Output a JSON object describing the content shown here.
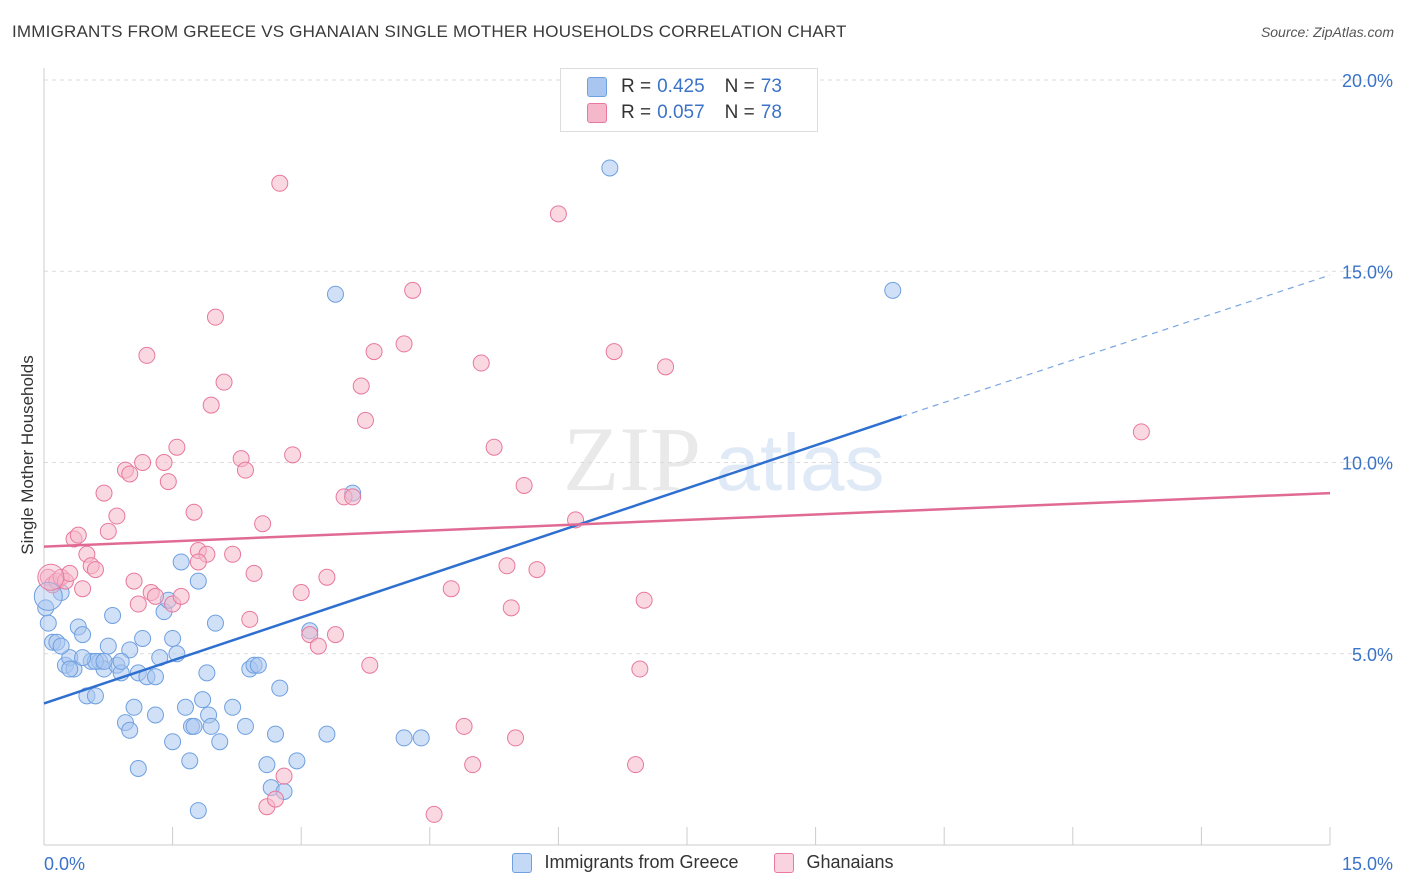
{
  "header": {
    "title": "IMMIGRANTS FROM GREECE VS GHANAIAN SINGLE MOTHER HOUSEHOLDS CORRELATION CHART",
    "source": "Source: ZipAtlas.com"
  },
  "watermark": {
    "zip": "ZIP",
    "atlas": "atlas"
  },
  "legend": {
    "r_label": "R =",
    "n_label": "N =",
    "entries": [
      {
        "r": "0.425",
        "n": "73",
        "color": "#a9c6f0"
      },
      {
        "r": "0.057",
        "n": "78",
        "color": "#f5b8cb"
      }
    ]
  },
  "chart_data": {
    "type": "scatter",
    "title": "IMMIGRANTS FROM GREECE VS GHANAIAN SINGLE MOTHER HOUSEHOLDS CORRELATION CHART",
    "xlabel": "",
    "ylabel": "Single Mother Households",
    "xlim": [
      0,
      15
    ],
    "ylim": [
      0,
      20
    ],
    "x_tick_labels": [
      "0.0%",
      "15.0%"
    ],
    "y_ticks": [
      5,
      10,
      15,
      20
    ],
    "y_tick_labels": [
      "5.0%",
      "10.0%",
      "15.0%",
      "20.0%"
    ],
    "grid": true,
    "legend_position": "top-center",
    "series": [
      {
        "name": "Immigrants from Greece",
        "color": "#6fa0e0",
        "fill": "#a9c6f0",
        "trend": {
          "x": [
            0,
            10.0
          ],
          "y": [
            3.7,
            11.2
          ],
          "extend_to_x": 15,
          "extend_y": 14.9
        },
        "points": [
          [
            0.02,
            6.2
          ],
          [
            0.05,
            5.8
          ],
          [
            0.1,
            5.3
          ],
          [
            0.15,
            5.3
          ],
          [
            0.2,
            6.6
          ],
          [
            0.25,
            4.7
          ],
          [
            0.3,
            4.9
          ],
          [
            0.35,
            4.6
          ],
          [
            0.4,
            5.7
          ],
          [
            0.45,
            5.5
          ],
          [
            0.5,
            3.9
          ],
          [
            0.55,
            4.8
          ],
          [
            0.6,
            3.9
          ],
          [
            0.65,
            4.8
          ],
          [
            0.7,
            4.6
          ],
          [
            0.75,
            5.2
          ],
          [
            0.8,
            6.0
          ],
          [
            0.85,
            4.7
          ],
          [
            0.9,
            4.5
          ],
          [
            0.95,
            3.2
          ],
          [
            1.0,
            3.0
          ],
          [
            1.0,
            5.1
          ],
          [
            1.05,
            3.6
          ],
          [
            1.1,
            4.5
          ],
          [
            1.15,
            5.4
          ],
          [
            1.2,
            4.4
          ],
          [
            1.1,
            2.0
          ],
          [
            1.3,
            3.4
          ],
          [
            1.35,
            4.9
          ],
          [
            1.4,
            6.1
          ],
          [
            1.45,
            6.4
          ],
          [
            1.5,
            2.7
          ],
          [
            1.5,
            5.4
          ],
          [
            1.55,
            5.0
          ],
          [
            1.6,
            7.4
          ],
          [
            1.65,
            3.6
          ],
          [
            1.7,
            2.2
          ],
          [
            1.72,
            3.1
          ],
          [
            1.75,
            3.1
          ],
          [
            1.8,
            6.9
          ],
          [
            1.85,
            3.8
          ],
          [
            1.9,
            4.5
          ],
          [
            1.92,
            3.4
          ],
          [
            1.95,
            3.1
          ],
          [
            2.0,
            5.8
          ],
          [
            2.05,
            2.7
          ],
          [
            2.2,
            3.6
          ],
          [
            2.35,
            3.1
          ],
          [
            2.4,
            4.6
          ],
          [
            2.45,
            4.7
          ],
          [
            2.6,
            2.1
          ],
          [
            2.65,
            1.5
          ],
          [
            2.7,
            2.9
          ],
          [
            2.75,
            4.1
          ],
          [
            2.8,
            1.4
          ],
          [
            2.95,
            2.2
          ],
          [
            3.1,
            5.6
          ],
          [
            3.3,
            2.9
          ],
          [
            3.4,
            14.4
          ],
          [
            3.6,
            9.2
          ],
          [
            4.2,
            2.8
          ],
          [
            4.4,
            2.8
          ],
          [
            6.6,
            17.7
          ],
          [
            9.9,
            14.5
          ],
          [
            1.8,
            0.9
          ],
          [
            0.6,
            4.8
          ],
          [
            0.9,
            4.8
          ],
          [
            0.7,
            4.8
          ],
          [
            0.2,
            5.2
          ],
          [
            0.3,
            4.6
          ],
          [
            1.3,
            4.4
          ],
          [
            0.45,
            4.9
          ],
          [
            2.5,
            4.7
          ]
        ]
      },
      {
        "name": "Ghanaians",
        "color": "#e8789d",
        "fill": "#f5b8cb",
        "trend": {
          "x": [
            0,
            15
          ],
          "y": [
            7.8,
            9.2
          ]
        },
        "points": [
          [
            0.05,
            7.0
          ],
          [
            0.1,
            6.8
          ],
          [
            0.15,
            6.9
          ],
          [
            0.2,
            7.0
          ],
          [
            0.25,
            6.9
          ],
          [
            0.3,
            7.1
          ],
          [
            0.35,
            8.0
          ],
          [
            0.4,
            8.1
          ],
          [
            0.45,
            6.7
          ],
          [
            0.5,
            7.6
          ],
          [
            0.55,
            7.3
          ],
          [
            0.6,
            7.2
          ],
          [
            0.7,
            9.2
          ],
          [
            0.75,
            8.2
          ],
          [
            0.85,
            8.6
          ],
          [
            0.95,
            9.8
          ],
          [
            1.0,
            9.7
          ],
          [
            1.05,
            6.9
          ],
          [
            1.1,
            6.3
          ],
          [
            1.15,
            10.0
          ],
          [
            1.2,
            12.8
          ],
          [
            1.25,
            6.6
          ],
          [
            1.3,
            6.5
          ],
          [
            1.4,
            10.0
          ],
          [
            1.45,
            9.5
          ],
          [
            1.5,
            6.3
          ],
          [
            1.55,
            10.4
          ],
          [
            1.6,
            6.5
          ],
          [
            1.75,
            8.7
          ],
          [
            1.8,
            7.7
          ],
          [
            1.9,
            7.6
          ],
          [
            1.95,
            11.5
          ],
          [
            2.0,
            13.8
          ],
          [
            2.1,
            12.1
          ],
          [
            2.2,
            7.6
          ],
          [
            2.3,
            10.1
          ],
          [
            2.35,
            9.8
          ],
          [
            2.4,
            5.9
          ],
          [
            2.45,
            7.1
          ],
          [
            2.55,
            8.4
          ],
          [
            2.6,
            1.0
          ],
          [
            2.7,
            1.2
          ],
          [
            2.75,
            17.3
          ],
          [
            2.8,
            1.8
          ],
          [
            2.9,
            10.2
          ],
          [
            3.0,
            6.6
          ],
          [
            3.1,
            5.5
          ],
          [
            3.2,
            5.2
          ],
          [
            3.3,
            7.0
          ],
          [
            3.4,
            5.5
          ],
          [
            3.5,
            9.1
          ],
          [
            3.6,
            9.1
          ],
          [
            3.7,
            12.0
          ],
          [
            3.75,
            11.1
          ],
          [
            3.8,
            4.7
          ],
          [
            3.85,
            12.9
          ],
          [
            4.2,
            13.1
          ],
          [
            4.3,
            14.5
          ],
          [
            4.55,
            0.8
          ],
          [
            4.75,
            6.7
          ],
          [
            4.9,
            3.1
          ],
          [
            5.0,
            2.1
          ],
          [
            5.1,
            12.6
          ],
          [
            5.25,
            10.4
          ],
          [
            5.4,
            7.3
          ],
          [
            5.45,
            6.2
          ],
          [
            5.5,
            2.8
          ],
          [
            5.6,
            9.4
          ],
          [
            5.75,
            7.2
          ],
          [
            6.0,
            16.5
          ],
          [
            6.2,
            8.5
          ],
          [
            6.65,
            12.9
          ],
          [
            6.9,
            2.1
          ],
          [
            6.95,
            4.6
          ],
          [
            7.0,
            6.4
          ],
          [
            7.25,
            12.5
          ],
          [
            12.8,
            10.8
          ],
          [
            1.8,
            7.4
          ]
        ]
      }
    ]
  },
  "bottom_legend": {
    "items": [
      {
        "label": "Immigrants from Greece",
        "color": "#a9c6f0"
      },
      {
        "label": "Ghanaians",
        "color": "#f5b8cb"
      }
    ]
  }
}
